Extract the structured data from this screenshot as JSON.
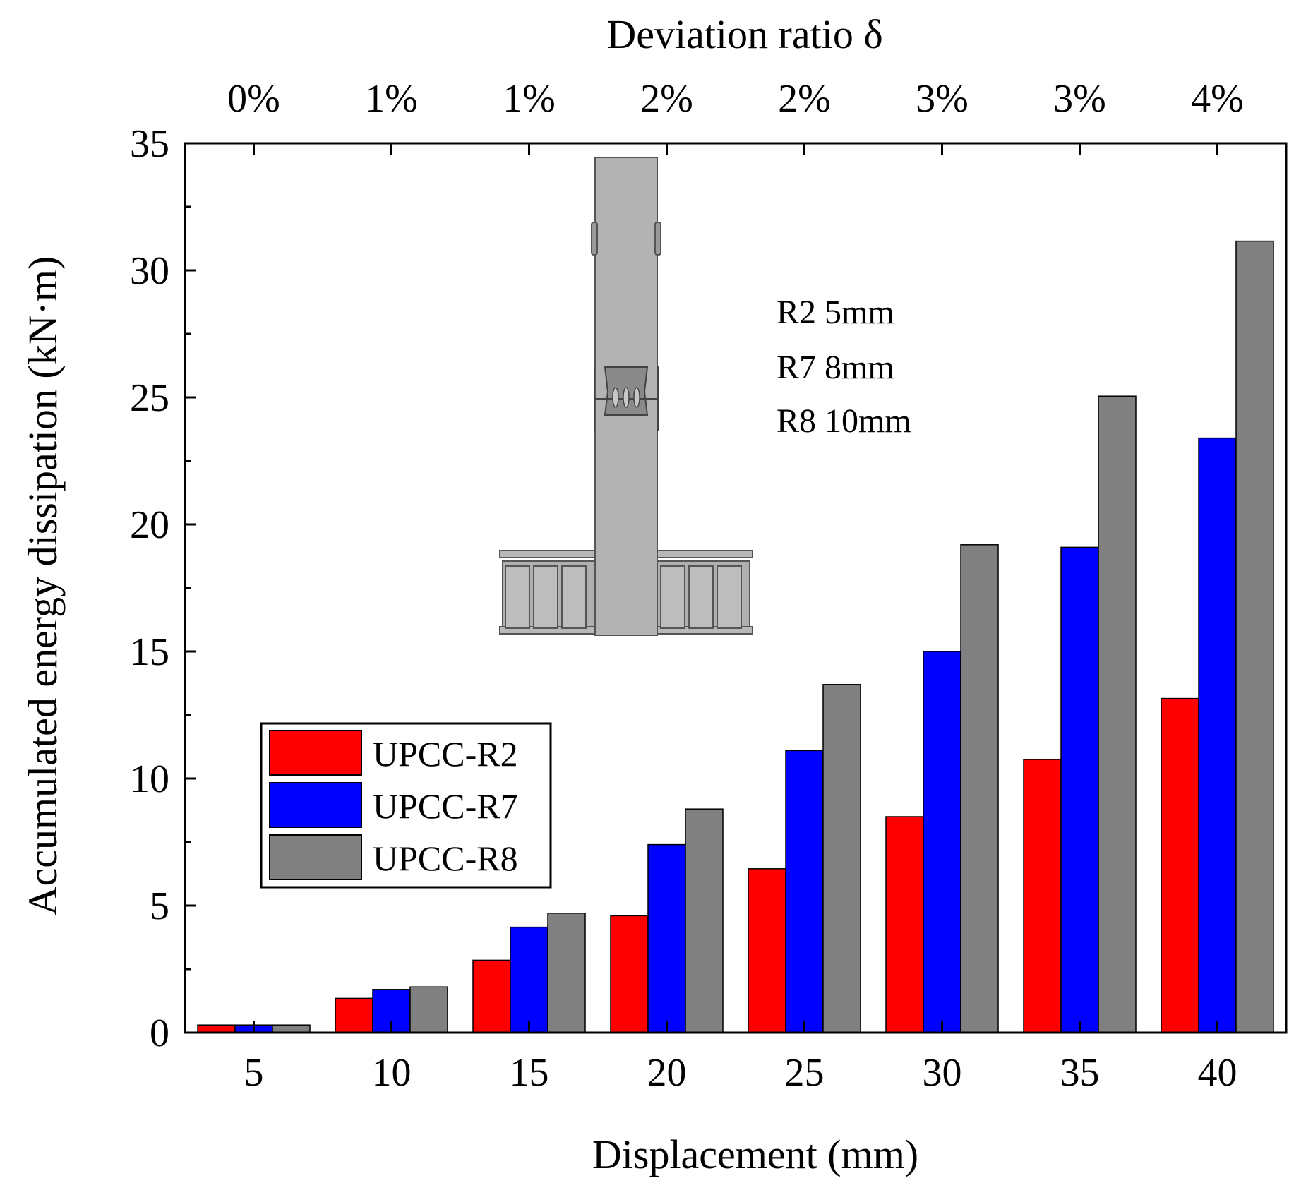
{
  "chart_data": {
    "type": "bar",
    "xlabel": "Displacement (mm)",
    "ylabel": "Accumulated energy dissipation (kN·m)",
    "top_axis_label": "Deviation ratio δ",
    "categories": [
      "5",
      "10",
      "15",
      "20",
      "25",
      "30",
      "35",
      "40"
    ],
    "top_categories": [
      "0%",
      "1%",
      "1%",
      "2%",
      "2%",
      "3%",
      "3%",
      "4%"
    ],
    "ylim": [
      0,
      35
    ],
    "yticks": [
      0,
      5,
      10,
      15,
      20,
      25,
      30,
      35
    ],
    "grid": false,
    "legend_position": "lower-left",
    "series": [
      {
        "name": "UPCC-R2",
        "color": "#ff0000",
        "values": [
          0.3,
          1.35,
          2.85,
          4.6,
          6.45,
          8.5,
          10.75,
          13.15
        ]
      },
      {
        "name": "UPCC-R7",
        "color": "#0000ff",
        "values": [
          0.3,
          1.7,
          4.15,
          7.4,
          11.1,
          15.0,
          19.1,
          23.4
        ]
      },
      {
        "name": "UPCC-R8",
        "color": "#808080",
        "values": [
          0.3,
          1.8,
          4.7,
          8.8,
          13.7,
          19.2,
          25.05,
          31.15
        ]
      }
    ],
    "annotation_lines": [
      "R2 5mm",
      "R7 8mm",
      "R8 10mm"
    ],
    "inset_image": "column-specimen-diagram"
  }
}
